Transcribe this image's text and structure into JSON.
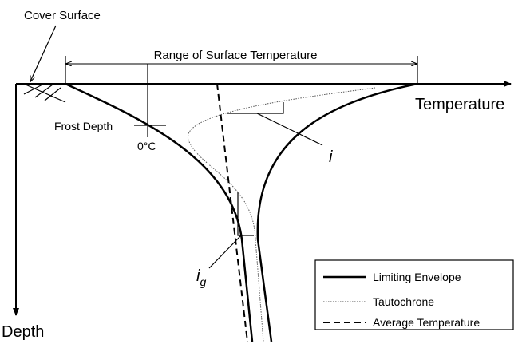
{
  "labels": {
    "cover_surface": "Cover Surface",
    "range": "Range of Surface Temperature",
    "temperature_axis": "Temperature",
    "depth_axis": "Depth",
    "frost_depth": "Frost Depth",
    "zero": "0°C",
    "i": "i",
    "ig_main": "i",
    "ig_sub": "g"
  },
  "legend": [
    "Limiting Envelope",
    "Tautochrone",
    "Average Temperature"
  ]
}
